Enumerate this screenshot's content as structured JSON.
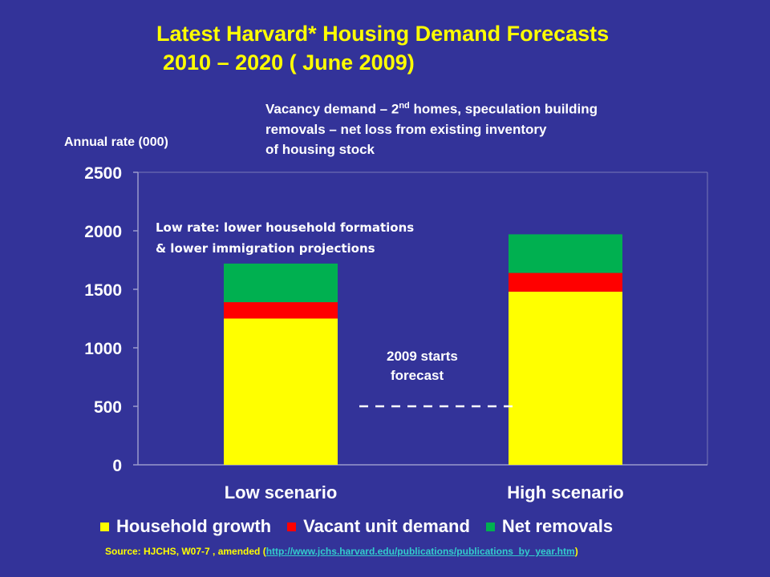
{
  "title_line1": "Latest  Harvard* Housing Demand Forecasts",
  "title_line2": "2010 – 2020 ( June 2009)",
  "vacancy_note": {
    "line1_pre": "Vacancy demand – 2",
    "line1_sup": "nd",
    "line1_post": " homes, speculation building",
    "line2": "removals – net loss from existing inventory",
    "line3": "of housing stock"
  },
  "source": {
    "prefix": "Source: HJCHS, W07-7 , amended (",
    "link": "http://www.jchs.harvard.edu/publications/publications_by_year.htm",
    "suffix": ")"
  },
  "colors": {
    "background": "#333399",
    "household": "#ffff00",
    "vacant": "#ff0000",
    "removals": "#00b050"
  },
  "chart_data": {
    "type": "bar",
    "stacked": true,
    "ylabel": "Annual rate (000)",
    "ylim": [
      0,
      2500
    ],
    "yticks": [
      "0",
      "500",
      "1000",
      "1500",
      "2000",
      "2500"
    ],
    "categories": [
      "Low scenario",
      "High scenario"
    ],
    "series": [
      {
        "name": "Household growth",
        "color": "#ffff00",
        "values": [
          1250,
          1480
        ]
      },
      {
        "name": "Vacant unit demand",
        "color": "#ff0000",
        "values": [
          140,
          160
        ]
      },
      {
        "name": "Net removals",
        "color": "#00b050",
        "values": [
          330,
          330
        ]
      }
    ],
    "reference_line": {
      "value": 630,
      "label_line1": "2009 starts",
      "label_line2": "forecast"
    },
    "annotation": {
      "line1": "Low rate: lower household  formations",
      "line2": " & lower immigration projections"
    }
  }
}
